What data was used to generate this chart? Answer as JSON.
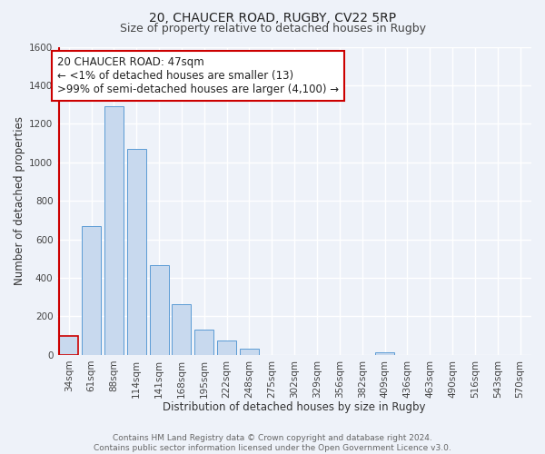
{
  "title": "20, CHAUCER ROAD, RUGBY, CV22 5RP",
  "subtitle": "Size of property relative to detached houses in Rugby",
  "xlabel": "Distribution of detached houses by size in Rugby",
  "ylabel": "Number of detached properties",
  "bar_labels": [
    "34sqm",
    "61sqm",
    "88sqm",
    "114sqm",
    "141sqm",
    "168sqm",
    "195sqm",
    "222sqm",
    "248sqm",
    "275sqm",
    "302sqm",
    "329sqm",
    "356sqm",
    "382sqm",
    "409sqm",
    "436sqm",
    "463sqm",
    "490sqm",
    "516sqm",
    "543sqm",
    "570sqm"
  ],
  "bar_values": [
    100,
    670,
    1290,
    1070,
    465,
    265,
    130,
    75,
    30,
    0,
    0,
    0,
    0,
    0,
    15,
    0,
    0,
    0,
    0,
    0,
    0
  ],
  "bar_color": "#c8d9ee",
  "bar_edge_color": "#5b9bd5",
  "highlight_bar_index": 0,
  "highlight_bar_edge_color": "#cc0000",
  "ylim": [
    0,
    1600
  ],
  "yticks": [
    0,
    200,
    400,
    600,
    800,
    1000,
    1200,
    1400,
    1600
  ],
  "annotation_text_line1": "20 CHAUCER ROAD: 47sqm",
  "annotation_text_line2": "← <1% of detached houses are smaller (13)",
  "annotation_text_line3": ">99% of semi-detached houses are larger (4,100) →",
  "annotation_box_facecolor": "#ffffff",
  "annotation_box_edgecolor": "#cc0000",
  "vline_color": "#cc0000",
  "footer_line1": "Contains HM Land Registry data © Crown copyright and database right 2024.",
  "footer_line2": "Contains public sector information licensed under the Open Government Licence v3.0.",
  "background_color": "#eef2f9",
  "grid_color": "#ffffff",
  "title_fontsize": 10,
  "subtitle_fontsize": 9,
  "axis_label_fontsize": 8.5,
  "tick_fontsize": 7.5,
  "annotation_fontsize": 8.5,
  "footer_fontsize": 6.5
}
